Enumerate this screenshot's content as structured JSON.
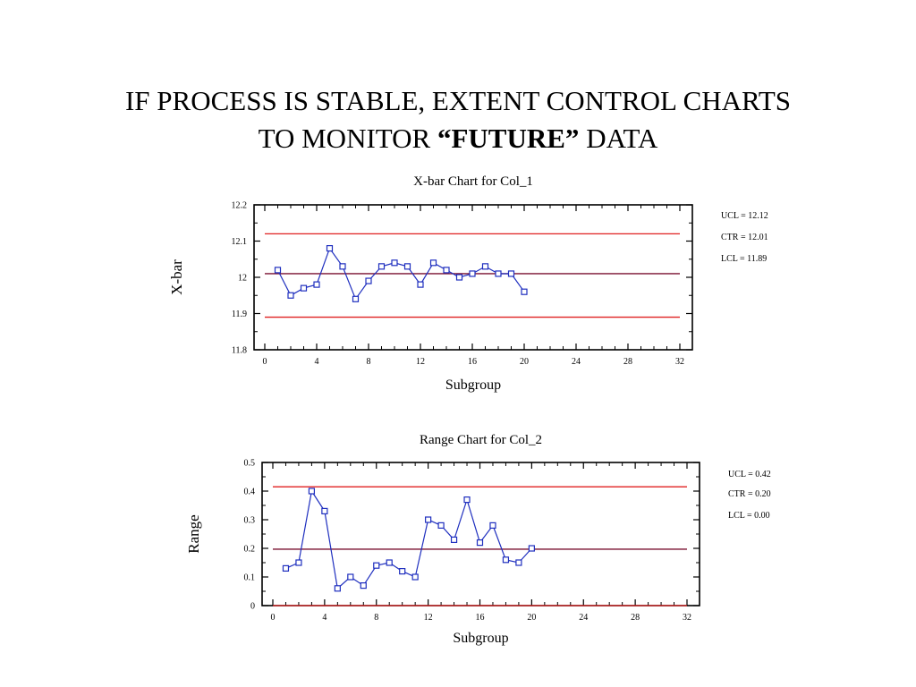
{
  "slide": {
    "title_line1": "IF PROCESS IS STABLE, EXTENT CONTROL CHARTS",
    "title_line2_pre": "TO MONITOR ",
    "title_line2_bold": "“FUTURE”",
    "title_line2_post": " DATA"
  },
  "colors": {
    "data_line": "#1f2fbf",
    "limit_line": "#e02020",
    "center_line": "#7a1030",
    "frame": "#000000"
  },
  "chart_data": [
    {
      "type": "line",
      "title": "X-bar Chart for Col_1",
      "xlabel": "Subgroup",
      "ylabel": "X-bar",
      "xlim": [
        0,
        32
      ],
      "ylim": [
        11.8,
        12.2
      ],
      "x_ticks": [
        "0",
        "4",
        "8",
        "12",
        "16",
        "20",
        "24",
        "28",
        "32"
      ],
      "y_ticks": [
        "11.8",
        "11.9",
        "12",
        "12.1",
        "12.2"
      ],
      "x": [
        1,
        2,
        3,
        4,
        5,
        6,
        7,
        8,
        9,
        10,
        11,
        12,
        13,
        14,
        15,
        16,
        17,
        18,
        19,
        20
      ],
      "values": [
        12.02,
        11.95,
        11.97,
        11.98,
        12.08,
        12.03,
        11.94,
        11.99,
        12.03,
        12.04,
        12.03,
        11.98,
        12.04,
        12.02,
        12.0,
        12.01,
        12.03,
        12.01,
        12.01,
        11.96
      ],
      "limits": {
        "ucl": 12.12,
        "ctr": 12.01,
        "lcl": 11.89,
        "ucl_label": "UCL = 12.12",
        "ctr_label": "CTR = 12.01",
        "lcl_label": "LCL = 11.89"
      },
      "grid": false
    },
    {
      "type": "line",
      "title": "Range Chart for Col_2",
      "xlabel": "Subgroup",
      "ylabel": "Range",
      "xlim": [
        0,
        32
      ],
      "ylim": [
        0,
        0.5
      ],
      "x_ticks": [
        "0",
        "4",
        "8",
        "12",
        "16",
        "20",
        "24",
        "28",
        "32"
      ],
      "y_ticks": [
        "0",
        "0.1",
        "0.2",
        "0.3",
        "0.4",
        "0.5"
      ],
      "x": [
        1,
        2,
        3,
        4,
        5,
        6,
        7,
        8,
        9,
        10,
        11,
        12,
        13,
        14,
        15,
        16,
        17,
        18,
        19,
        20
      ],
      "values": [
        0.13,
        0.15,
        0.4,
        0.33,
        0.06,
        0.1,
        0.07,
        0.14,
        0.15,
        0.12,
        0.1,
        0.3,
        0.28,
        0.23,
        0.37,
        0.22,
        0.28,
        0.16,
        0.15,
        0.2
      ],
      "limits": {
        "ucl": 0.415,
        "ctr": 0.197,
        "lcl": 0.0,
        "ucl_label": "UCL = 0.42",
        "ctr_label": "CTR = 0.20",
        "lcl_label": "LCL = 0.00"
      },
      "grid": false
    }
  ]
}
